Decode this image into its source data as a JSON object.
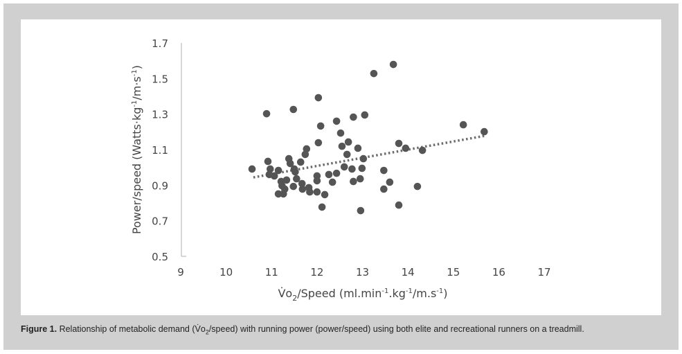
{
  "chart_data": {
    "type": "scatter",
    "title": "",
    "xlabel": "V̇o2/Speed (ml.min-1.kg-1/m.s-1)",
    "ylabel": "Power/speed (Watts·kg-1/m·s-1)",
    "xlabel_parts": {
      "v": "V̇o",
      "sub": "2",
      "rest1": "/Speed (ml.min",
      "sup1": "-1",
      "rest2": ".kg",
      "sup2": "-1",
      "rest3": "/m.s",
      "sup3": "-1",
      "end": ")"
    },
    "ylabel_parts": {
      "pre": "Power/speed (Watts·kg",
      "sup1": "-1",
      "mid": "/m·s",
      "sup2": "-1",
      "end": ")"
    },
    "xlim": [
      9,
      17
    ],
    "ylim": [
      0.5,
      1.7
    ],
    "xticks": [
      "9",
      "10",
      "11",
      "12",
      "13",
      "14",
      "15",
      "16",
      "17"
    ],
    "yticks": [
      "0.5",
      "0.7",
      "0.9",
      "1.1",
      "1.3",
      "1.5",
      "1.7"
    ],
    "grid": false,
    "point_color": "#555555",
    "trendline": {
      "style": "dotted",
      "x": [
        10.6,
        15.7
      ],
      "y": [
        0.944,
        1.178
      ],
      "color": "#6b6b6b"
    },
    "points": [
      [
        13.25,
        1.528
      ],
      [
        13.68,
        1.579
      ],
      [
        12.03,
        1.392
      ],
      [
        10.89,
        1.302
      ],
      [
        11.48,
        1.326
      ],
      [
        12.08,
        1.233
      ],
      [
        12.43,
        1.26
      ],
      [
        12.8,
        1.283
      ],
      [
        13.05,
        1.295
      ],
      [
        12.52,
        1.193
      ],
      [
        12.03,
        1.139
      ],
      [
        12.69,
        1.143
      ],
      [
        12.55,
        1.119
      ],
      [
        11.77,
        1.104
      ],
      [
        11.74,
        1.073
      ],
      [
        12.9,
        1.108
      ],
      [
        12.66,
        1.073
      ],
      [
        10.92,
        1.034
      ],
      [
        13.02,
        1.049
      ],
      [
        11.38,
        1.049
      ],
      [
        11.41,
        1.022
      ],
      [
        11.64,
        1.03
      ],
      [
        10.57,
        0.991
      ],
      [
        10.97,
        0.991
      ],
      [
        11.15,
        0.983
      ],
      [
        11.5,
        0.991
      ],
      [
        10.95,
        0.96
      ],
      [
        11.06,
        0.952
      ],
      [
        11.52,
        0.975
      ],
      [
        12.6,
        1.003
      ],
      [
        12.77,
        0.991
      ],
      [
        12.99,
        0.995
      ],
      [
        13.47,
        0.983
      ],
      [
        12.0,
        0.952
      ],
      [
        12.0,
        0.925
      ],
      [
        12.26,
        0.96
      ],
      [
        12.43,
        0.967
      ],
      [
        11.55,
        0.936
      ],
      [
        11.21,
        0.921
      ],
      [
        11.33,
        0.929
      ],
      [
        11.23,
        0.897
      ],
      [
        11.29,
        0.878
      ],
      [
        11.48,
        0.893
      ],
      [
        11.67,
        0.909
      ],
      [
        11.68,
        0.878
      ],
      [
        11.82,
        0.886
      ],
      [
        11.84,
        0.862
      ],
      [
        12.0,
        0.862
      ],
      [
        12.17,
        0.847
      ],
      [
        11.15,
        0.851
      ],
      [
        11.26,
        0.851
      ],
      [
        12.34,
        0.917
      ],
      [
        12.8,
        0.921
      ],
      [
        12.95,
        0.936
      ],
      [
        13.47,
        0.878
      ],
      [
        12.11,
        0.777
      ],
      [
        12.96,
        0.757
      ],
      [
        15.22,
        1.24
      ],
      [
        15.68,
        1.201
      ],
      [
        13.8,
        1.135
      ],
      [
        13.95,
        1.108
      ],
      [
        14.32,
        1.096
      ],
      [
        13.6,
        0.917
      ],
      [
        14.21,
        0.893
      ],
      [
        13.8,
        0.788
      ]
    ]
  },
  "caption": {
    "label": "Figure 1.",
    "text_pre": " Relationship of metabolic demand (V̇o",
    "text_sub": "2",
    "text_post": "/speed) with running power (power/speed) using both elite and recreational runners on a treadmill."
  }
}
